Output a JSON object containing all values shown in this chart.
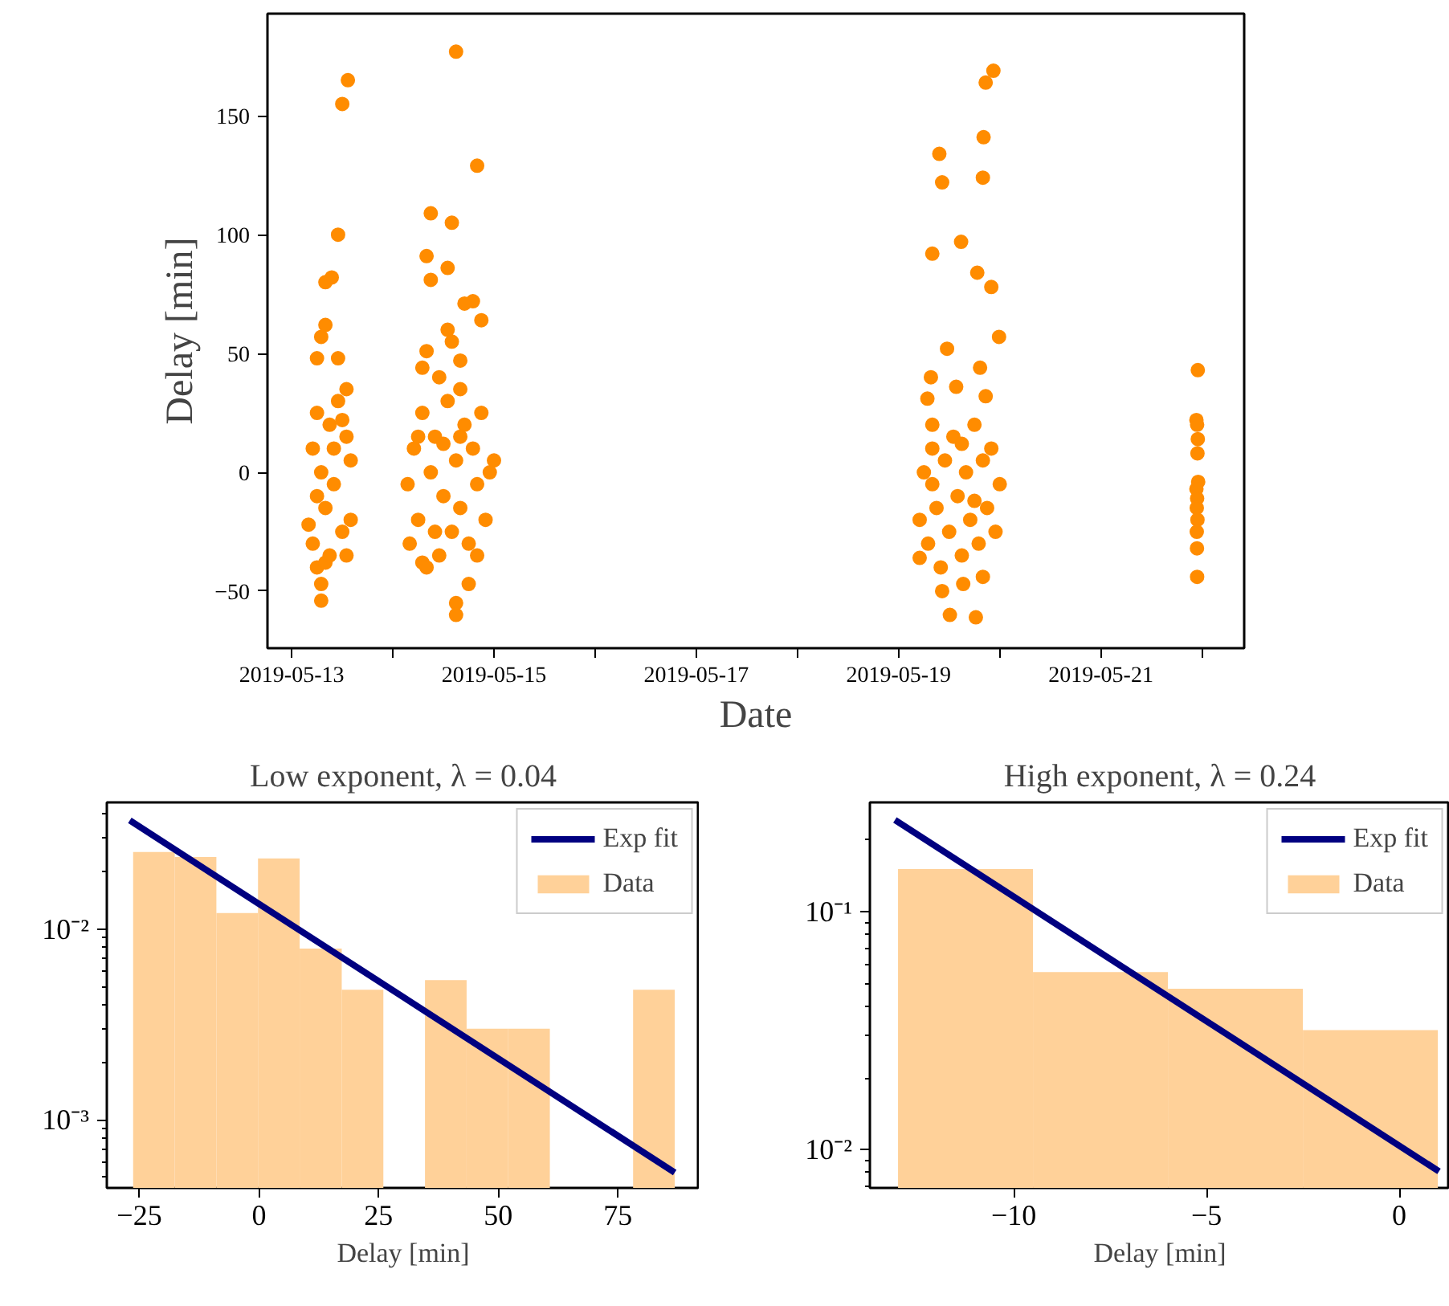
{
  "chart_data": [
    {
      "type": "scatter",
      "xlabel": "Date",
      "ylabel": "Delay [min]",
      "marker": "circle",
      "grid": false,
      "legend": false,
      "xlim": [
        "2019-05-12T18:15",
        "2019-05-22T10:00"
      ],
      "ylim": [
        -74,
        193
      ],
      "xticks": [
        "2019-05-13",
        {
          "value": "2019-05-14",
          "label": null
        },
        "2019-05-15",
        {
          "value": "2019-05-16",
          "label": null
        },
        "2019-05-17",
        {
          "value": "2019-05-18",
          "label": null
        },
        "2019-05-19",
        {
          "value": "2019-05-20",
          "label": null
        },
        "2019-05-21",
        {
          "value": "2019-05-22",
          "label": null
        }
      ],
      "yticks": [
        -50,
        0,
        50,
        100,
        150
      ],
      "series": [
        {
          "color": "#ff8c00",
          "x": [
            "2019-05-13T07:00",
            "2019-05-13T07:00",
            "2019-05-13T06:00",
            "2019-05-13T13:00",
            "2019-05-13T04:00",
            "2019-05-13T05:00",
            "2019-05-13T05:00",
            "2019-05-13T06:00",
            "2019-05-13T06:00",
            "2019-05-13T07:00",
            "2019-05-13T08:00",
            "2019-05-13T08:00",
            "2019-05-13T09:00",
            "2019-05-13T09:00",
            "2019-05-13T10:00",
            "2019-05-13T10:00",
            "2019-05-13T11:00",
            "2019-05-13T12:00",
            "2019-05-13T12:00",
            "2019-05-13T13:00",
            "2019-05-13T14:00",
            "2019-05-13T14:00",
            "2019-05-13T06:00",
            "2019-05-13T07:00",
            "2019-05-13T08:00",
            "2019-05-13T08:00",
            "2019-05-13T09:30",
            "2019-05-13T11:00",
            "2019-05-13T12:00",
            "2019-05-13T13:20",
            "2019-05-13T11:00",
            "2019-05-13T13:00",
            "2019-05-14T15:00",
            "2019-05-14T20:00",
            "2019-05-14T09:00",
            "2019-05-14T14:00",
            "2019-05-14T08:00",
            "2019-05-14T13:00",
            "2019-05-14T09:00",
            "2019-05-14T19:00",
            "2019-05-14T17:00",
            "2019-05-14T21:00",
            "2019-05-14T13:00",
            "2019-05-14T14:00",
            "2019-05-14T08:00",
            "2019-05-14T16:00",
            "2019-05-14T07:00",
            "2019-05-14T11:00",
            "2019-05-14T16:00",
            "2019-05-14T18:00",
            "2019-05-14T15:00",
            "2019-05-14T15:00",
            "2019-05-14T07:00",
            "2019-05-14T03:30",
            "2019-05-14T04:00",
            "2019-05-14T05:00",
            "2019-05-14T06:00",
            "2019-05-14T07:00",
            "2019-05-14T08:00",
            "2019-05-14T09:00",
            "2019-05-14T10:00",
            "2019-05-14T11:00",
            "2019-05-14T12:00",
            "2019-05-14T13:00",
            "2019-05-14T14:00",
            "2019-05-14T15:00",
            "2019-05-14T16:00",
            "2019-05-14T17:00",
            "2019-05-14T18:00",
            "2019-05-14T19:00",
            "2019-05-14T20:00",
            "2019-05-14T21:00",
            "2019-05-14T22:00",
            "2019-05-14T23:00",
            "2019-05-15T00:00",
            "2019-05-14T10:00",
            "2019-05-14T16:00",
            "2019-05-14T20:00",
            "2019-05-14T06:00",
            "2019-05-14T12:00",
            "2019-05-19T22:30",
            "2019-05-19T20:40",
            "2019-05-19T09:40",
            "2019-05-19T20:10",
            "2019-05-19T10:20",
            "2019-05-19T20:00",
            "2019-05-19T14:50",
            "2019-05-19T08:00",
            "2019-05-19T18:40",
            "2019-05-19T22:00",
            "2019-05-19T23:50",
            "2019-05-19T11:30",
            "2019-05-19T07:40",
            "2019-05-19T19:20",
            "2019-05-19T13:40",
            "2019-05-19T06:50",
            "2019-05-19T20:40",
            "2019-05-19T08:00",
            "2019-05-19T12:10",
            "2019-05-19T18:20",
            "2019-05-19T10:20",
            "2019-05-19T15:20",
            "2019-05-19T20:00",
            "2019-05-19T05:00",
            "2019-05-19T05:00",
            "2019-05-19T06:00",
            "2019-05-19T07:00",
            "2019-05-19T08:00",
            "2019-05-19T09:00",
            "2019-05-19T10:00",
            "2019-05-19T11:00",
            "2019-05-19T12:00",
            "2019-05-19T13:00",
            "2019-05-19T14:00",
            "2019-05-19T15:00",
            "2019-05-19T16:00",
            "2019-05-19T17:00",
            "2019-05-19T18:00",
            "2019-05-19T19:00",
            "2019-05-19T20:00",
            "2019-05-19T21:00",
            "2019-05-19T22:00",
            "2019-05-19T23:00",
            "2019-05-20T00:00",
            "2019-05-19T08:00",
            "2019-05-19T15:00",
            "2019-05-19T18:00",
            "2019-05-21T23:00",
            "2019-05-21T22:40",
            "2019-05-21T22:50",
            "2019-05-21T23:00",
            "2019-05-21T22:55",
            "2019-05-21T23:05",
            "2019-05-21T22:40",
            "2019-05-21T22:50",
            "2019-05-21T22:45",
            "2019-05-21T22:55",
            "2019-05-21T22:45",
            "2019-05-21T22:48",
            "2019-05-21T22:50"
          ],
          "values": [
            -54,
            -47,
            -40,
            -35,
            -22,
            10,
            -30,
            25,
            -10,
            0,
            -15,
            -38,
            20,
            -35,
            -5,
            10,
            30,
            -25,
            22,
            15,
            5,
            -20,
            48,
            57,
            62,
            80,
            82,
            100,
            155,
            165,
            48,
            35,
            177,
            129,
            109,
            105,
            91,
            86,
            81,
            72,
            71,
            64,
            60,
            55,
            51,
            47,
            44,
            40,
            35,
            -47,
            -55,
            -60,
            -38,
            -5,
            -30,
            10,
            -20,
            25,
            -40,
            0,
            15,
            -35,
            -10,
            30,
            -25,
            5,
            -15,
            20,
            -30,
            10,
            -5,
            25,
            -20,
            0,
            5,
            -25,
            15,
            -35,
            15,
            12,
            169,
            164,
            134,
            141,
            122,
            124,
            97,
            92,
            84,
            78,
            57,
            52,
            40,
            44,
            36,
            31,
            32,
            20,
            -60,
            -61,
            -50,
            -47,
            -44,
            -36,
            -20,
            0,
            -30,
            10,
            -15,
            -40,
            5,
            -25,
            15,
            -10,
            -35,
            0,
            -20,
            20,
            -30,
            5,
            -15,
            10,
            -25,
            -5,
            -5,
            12,
            -12,
            43,
            22,
            20,
            14,
            8,
            -4,
            -7,
            -11,
            -15,
            -20,
            -25,
            -32,
            -44
          ]
        }
      ]
    },
    {
      "type": "histogram",
      "title": "Low exponent, λ = 0.04",
      "xlabel": "Delay [min]",
      "log": "y",
      "grid": false,
      "legend": "top right",
      "xlim": [
        -31.8,
        92.1
      ],
      "ylim": [
        0.00044,
        0.046
      ],
      "xticks": [
        -25,
        0,
        25,
        50,
        75
      ],
      "yticks": [
        {
          "value": 0.001,
          "label": "10⁻³"
        },
        {
          "value": 0.01,
          "label": "10⁻²"
        }
      ],
      "series": [
        {
          "type": "line",
          "name": "Exp fit",
          "color": "#000080",
          "x": [
            -27.0,
            86.9
          ],
          "values": [
            0.037,
            0.00053
          ]
        },
        {
          "type": "histogram",
          "name": "Data",
          "color": "#ffd199",
          "bins": [
            -26.3,
            -17.6,
            -8.9,
            -0.2,
            8.5,
            17.3,
            26.0,
            34.7,
            43.4,
            52.1,
            60.8,
            78.2,
            86.9
          ],
          "values": [
            0.0253,
            0.0238,
            0.0121,
            0.0234,
            0.0079,
            0.0048,
            null,
            0.0054,
            0.003,
            0.003,
            null,
            0.0048
          ]
        }
      ]
    },
    {
      "type": "histogram",
      "title": "High exponent, λ = 0.24",
      "xlabel": "Delay [min]",
      "log": "y",
      "grid": false,
      "legend": "top right",
      "xlim": [
        -13.73,
        1.31
      ],
      "ylim": [
        0.0069,
        0.288
      ],
      "xticks": [
        -10,
        -5,
        0
      ],
      "yticks": [
        {
          "value": 0.01,
          "label": "10⁻²"
        },
        {
          "value": 0.1,
          "label": "10⁻¹"
        }
      ],
      "series": [
        {
          "type": "line",
          "name": "Exp fit",
          "color": "#000080",
          "x": [
            -13.08,
            1.03
          ],
          "values": [
            0.243,
            0.0081
          ]
        },
        {
          "type": "histogram",
          "name": "Data",
          "color": "#ffd199",
          "bins": [
            -13.0,
            -9.5,
            -6.0,
            -2.5,
            1.0
          ],
          "values": [
            0.151,
            0.0557,
            0.0474,
            0.0318
          ]
        }
      ]
    }
  ]
}
